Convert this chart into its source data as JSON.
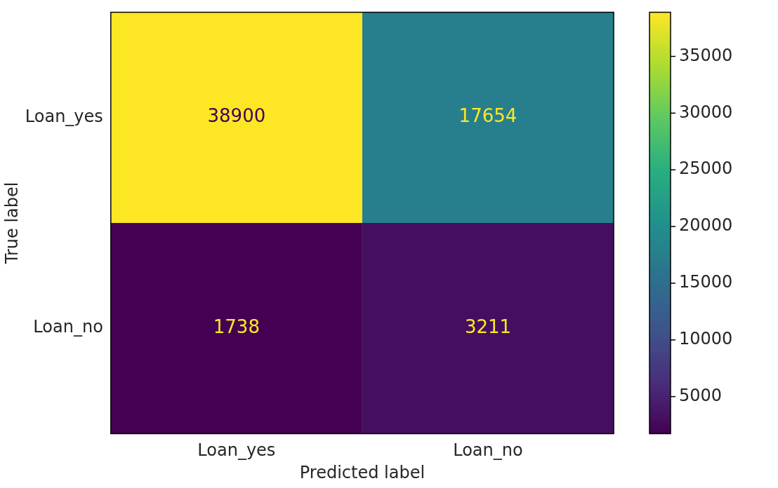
{
  "chart_data": {
    "type": "heatmap",
    "xlabel": "Predicted label",
    "ylabel": "True label",
    "categories": [
      "Loan_yes",
      "Loan_no"
    ],
    "y_categories": [
      "Loan_yes",
      "Loan_no"
    ],
    "cells": [
      [
        38900,
        17654
      ],
      [
        1738,
        3211
      ]
    ],
    "clim": [
      1738,
      38900
    ],
    "cticks": [
      5000,
      10000,
      15000,
      20000,
      25000,
      30000,
      35000
    ],
    "data_labels": true
  }
}
